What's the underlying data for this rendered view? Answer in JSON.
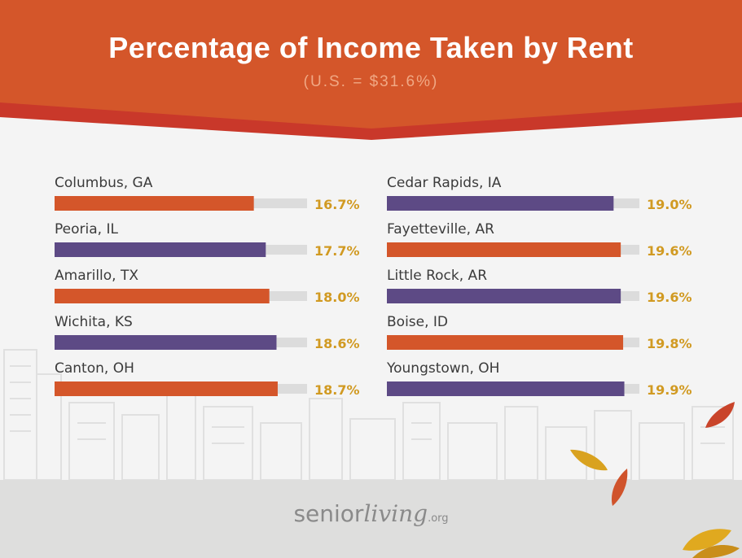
{
  "header": {
    "title": "Percentage of Income Taken by Rent",
    "subtitle": "(U.S. = $31.6%)"
  },
  "colors": {
    "banner": "#d4562a",
    "banner_edge": "#c9382a",
    "orange": "#d4562a",
    "purple": "#5d4a85",
    "track": "#dcdcdc",
    "value_text": "#d19a22"
  },
  "chart_data": {
    "type": "bar",
    "orientation": "horizontal",
    "title": "Percentage of Income Taken by Rent",
    "subtitle": "(U.S. = $31.6%)",
    "categories": [
      "Columbus, GA",
      "Peoria, IL",
      "Amarillo, TX",
      "Wichita, KS",
      "Canton, OH",
      "Cedar Rapids, IA",
      "Fayetteville, AR",
      "Little Rock, AR",
      "Boise, ID",
      "Youngstown, OH"
    ],
    "values": [
      16.7,
      17.7,
      18.0,
      18.6,
      18.7,
      19.0,
      19.6,
      19.6,
      19.8,
      19.9
    ],
    "value_labels": [
      "16.7%",
      "17.7%",
      "18.0%",
      "18.6%",
      "18.7%",
      "19.0%",
      "19.6%",
      "19.6%",
      "19.8%",
      "19.9%"
    ],
    "bar_colors": [
      "orange",
      "purple",
      "orange",
      "purple",
      "orange",
      "purple",
      "orange",
      "purple",
      "orange",
      "purple"
    ],
    "xlim": [
      0,
      20
    ],
    "layout": "two columns of five",
    "grid": false,
    "legend": "none"
  },
  "footer": {
    "logo_senior": "senior",
    "logo_living": "living",
    "logo_org": ".org"
  }
}
